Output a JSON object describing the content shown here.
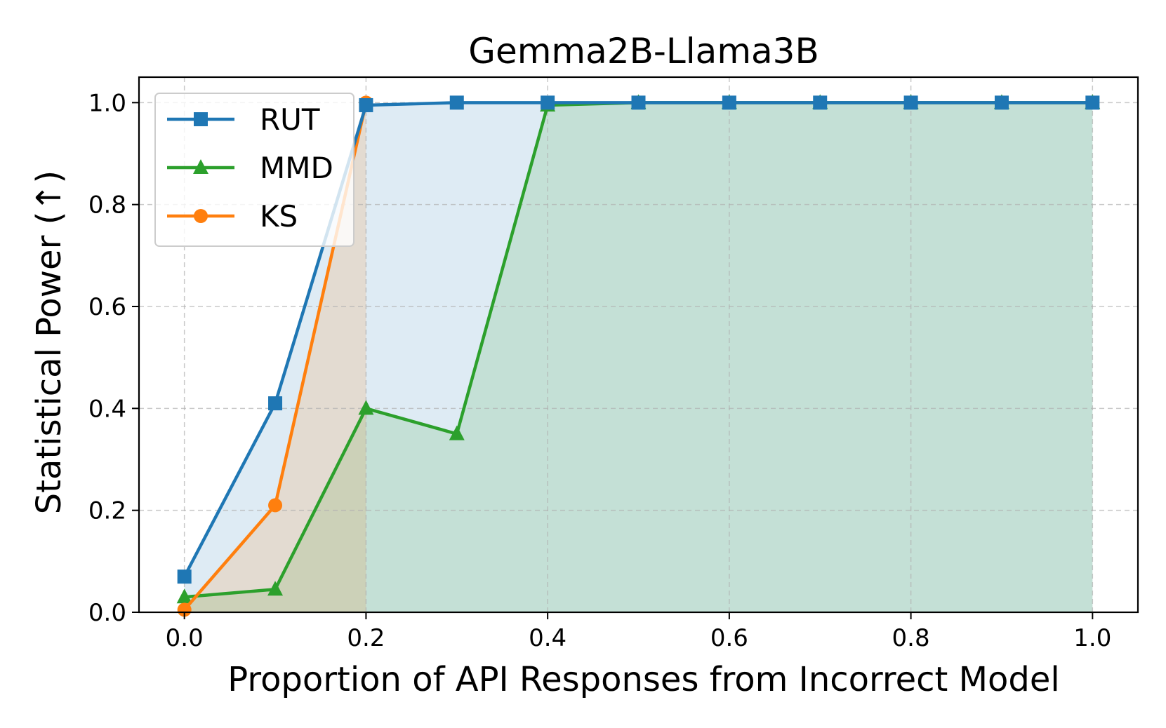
{
  "chart_data": {
    "type": "line",
    "title": "Gemma2B-Llama3B",
    "xlabel": "Proportion of API Responses from Incorrect Model",
    "ylabel": "Statistical Power (↑)",
    "xlim": [
      -0.05,
      1.05
    ],
    "ylim": [
      0.0,
      1.05
    ],
    "xticks": [
      0.0,
      0.2,
      0.4,
      0.6,
      0.8,
      1.0
    ],
    "xtick_labels": [
      "0.0",
      "0.2",
      "0.4",
      "0.6",
      "0.8",
      "1.0"
    ],
    "yticks": [
      0.0,
      0.2,
      0.4,
      0.6,
      0.8,
      1.0
    ],
    "ytick_labels": [
      "0.0",
      "0.2",
      "0.4",
      "0.6",
      "0.8",
      "1.0"
    ],
    "grid": true,
    "legend_position": "top-left",
    "x": [
      0.0,
      0.1,
      0.2,
      0.3,
      0.4,
      0.5,
      0.6,
      0.7,
      0.8,
      0.9,
      1.0
    ],
    "series": [
      {
        "name": "RUT",
        "marker": "square",
        "color": "#1f77b4",
        "fill": "#1f77b4",
        "x": [
          0.0,
          0.1,
          0.2,
          0.3,
          0.4,
          0.5,
          0.6,
          0.7,
          0.8,
          0.9,
          1.0
        ],
        "values": [
          0.07,
          0.41,
          0.995,
          1.0,
          1.0,
          1.0,
          1.0,
          1.0,
          1.0,
          1.0,
          1.0
        ]
      },
      {
        "name": "MMD",
        "marker": "triangle",
        "color": "#2ca02c",
        "fill": "#2ca02c",
        "x": [
          0.0,
          0.1,
          0.2,
          0.3,
          0.4,
          0.5,
          0.6,
          0.7,
          0.8,
          0.9,
          1.0
        ],
        "values": [
          0.03,
          0.045,
          0.4,
          0.35,
          0.995,
          1.0,
          1.0,
          1.0,
          1.0,
          1.0,
          1.0
        ]
      },
      {
        "name": "KS",
        "marker": "circle",
        "color": "#ff7f0e",
        "fill": "#ff7f0e",
        "x": [
          0.0,
          0.1,
          0.2
        ],
        "values": [
          0.005,
          0.21,
          1.0
        ]
      }
    ]
  }
}
